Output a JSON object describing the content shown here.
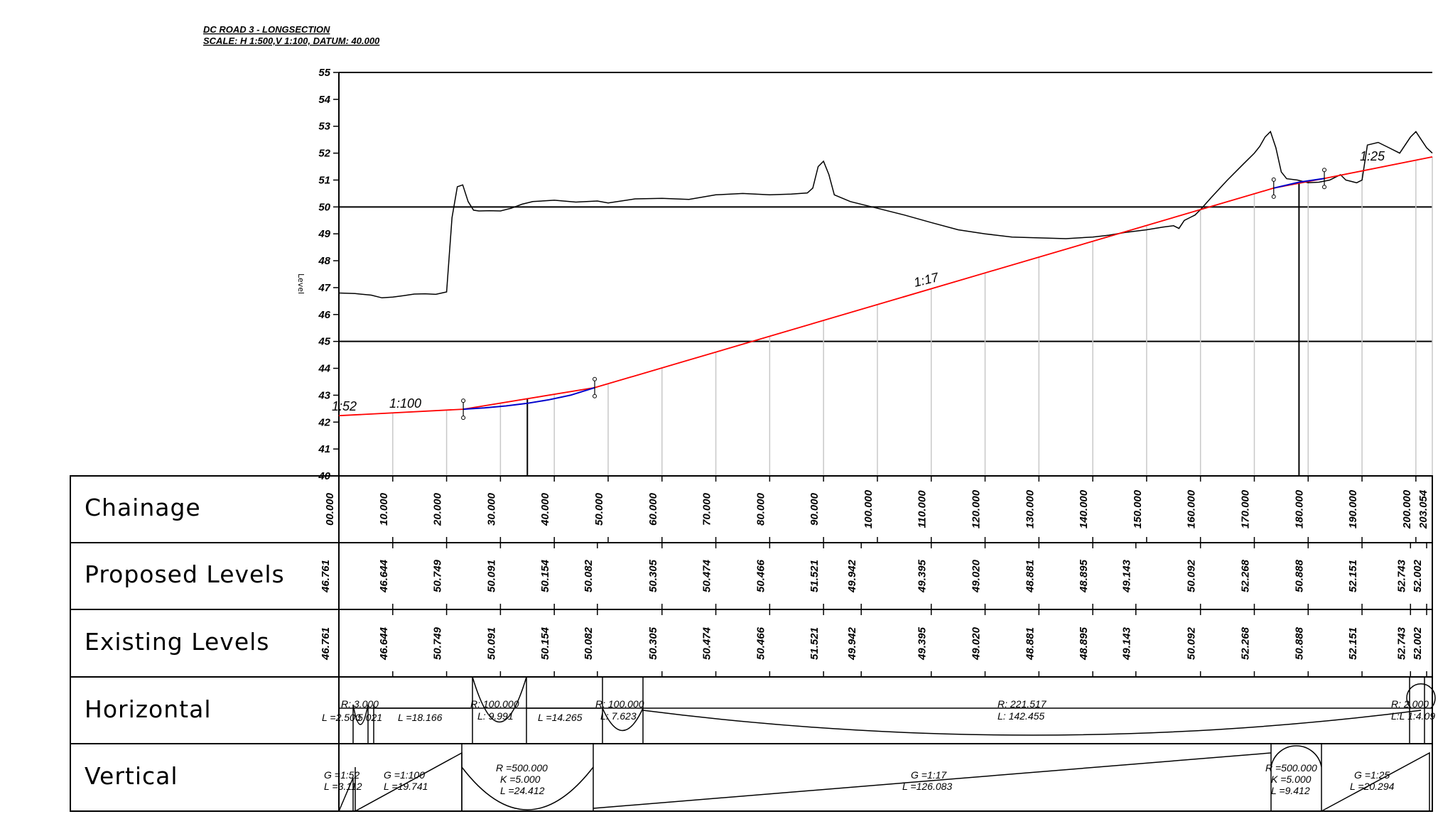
{
  "title": {
    "line1": "DC ROAD 3 - LONGSECTION",
    "line2": "SCALE: H 1:500,V 1:100, DATUM: 40.000"
  },
  "axis": {
    "y_label": "Level",
    "y_ticks": [
      40,
      41,
      42,
      43,
      44,
      45,
      46,
      47,
      48,
      49,
      50,
      51,
      52,
      53,
      54,
      55
    ],
    "x_range": [
      0,
      203.054
    ]
  },
  "grades": {
    "g1": "1:52",
    "g2": "1:100",
    "g3": "1:17",
    "g4": "1:25"
  },
  "table": {
    "headers": {
      "chainage": "Chainage",
      "proposed": "Proposed Levels",
      "existing": "Existing Levels",
      "horizontal": "Horizontal",
      "vertical": "Vertical"
    },
    "chainage_labels": [
      {
        "ch": 0,
        "text": "00.000"
      },
      {
        "ch": 10,
        "text": "10.000"
      },
      {
        "ch": 20,
        "text": "20.000"
      },
      {
        "ch": 30,
        "text": "30.000"
      },
      {
        "ch": 40,
        "text": "40.000"
      },
      {
        "ch": 50,
        "text": "50.000"
      },
      {
        "ch": 60,
        "text": "60.000"
      },
      {
        "ch": 70,
        "text": "70.000"
      },
      {
        "ch": 80,
        "text": "80.000"
      },
      {
        "ch": 90,
        "text": "90.000"
      },
      {
        "ch": 100,
        "text": "100.000"
      },
      {
        "ch": 110,
        "text": "110.000"
      },
      {
        "ch": 120,
        "text": "120.000"
      },
      {
        "ch": 130,
        "text": "130.000"
      },
      {
        "ch": 140,
        "text": "140.000"
      },
      {
        "ch": 150,
        "text": "150.000"
      },
      {
        "ch": 160,
        "text": "160.000"
      },
      {
        "ch": 170,
        "text": "170.000"
      },
      {
        "ch": 180,
        "text": "180.000"
      },
      {
        "ch": 190,
        "text": "190.000"
      },
      {
        "ch": 200,
        "text": "200.000"
      },
      {
        "ch": 203.054,
        "text": "203.054"
      }
    ],
    "proposed_levels": [
      {
        "ch": -4,
        "text": "46.761"
      },
      {
        "ch": 10,
        "text": "46.644"
      },
      {
        "ch": 20,
        "text": "50.749"
      },
      {
        "ch": 30,
        "text": "50.091"
      },
      {
        "ch": 40,
        "text": "50.154"
      },
      {
        "ch": 48,
        "text": "50.082"
      },
      {
        "ch": 60,
        "text": "50.305"
      },
      {
        "ch": 70,
        "text": "50.474"
      },
      {
        "ch": 80,
        "text": "50.466"
      },
      {
        "ch": 90,
        "text": "51.521"
      },
      {
        "ch": 97,
        "text": "49.942"
      },
      {
        "ch": 110,
        "text": "49.395"
      },
      {
        "ch": 120,
        "text": "49.020"
      },
      {
        "ch": 130,
        "text": "48.881"
      },
      {
        "ch": 140,
        "text": "48.895"
      },
      {
        "ch": 148,
        "text": "49.143"
      },
      {
        "ch": 160,
        "text": "50.092"
      },
      {
        "ch": 170,
        "text": "52.268"
      },
      {
        "ch": 180,
        "text": "50.888"
      },
      {
        "ch": 190,
        "text": "52.151"
      },
      {
        "ch": 199,
        "text": "52.743"
      },
      {
        "ch": 202,
        "text": "52.002"
      }
    ],
    "existing_levels": [
      {
        "ch": -4,
        "text": "46.761"
      },
      {
        "ch": 10,
        "text": "46.644"
      },
      {
        "ch": 20,
        "text": "50.749"
      },
      {
        "ch": 30,
        "text": "50.091"
      },
      {
        "ch": 40,
        "text": "50.154"
      },
      {
        "ch": 48,
        "text": "50.082"
      },
      {
        "ch": 60,
        "text": "50.305"
      },
      {
        "ch": 70,
        "text": "50.474"
      },
      {
        "ch": 80,
        "text": "50.466"
      },
      {
        "ch": 90,
        "text": "51.521"
      },
      {
        "ch": 97,
        "text": "49.942"
      },
      {
        "ch": 110,
        "text": "49.395"
      },
      {
        "ch": 120,
        "text": "49.020"
      },
      {
        "ch": 130,
        "text": "48.881"
      },
      {
        "ch": 140,
        "text": "48.895"
      },
      {
        "ch": 148,
        "text": "49.143"
      },
      {
        "ch": 160,
        "text": "50.092"
      },
      {
        "ch": 170,
        "text": "52.268"
      },
      {
        "ch": 180,
        "text": "50.888"
      },
      {
        "ch": 190,
        "text": "52.151"
      },
      {
        "ch": 199,
        "text": "52.743"
      },
      {
        "ch": 202,
        "text": "52.002"
      }
    ],
    "horizontal": {
      "r1": "R: 3.000",
      "l1": "L =2.500",
      "l1b": "5.021",
      "l2": "L =18.166",
      "r2": "R: 100.000",
      "l3": "L: 9.991",
      "l4": "L =14.265",
      "r3": "R: 100.000",
      "l5": "L: 7.623",
      "r4": "R: 221.517",
      "l6": "L: 142.455",
      "r5": "R: 2.000",
      "l7": "L:L 1:4.09"
    },
    "vertical": {
      "g1": "G =1:52",
      "l1": "L =3.112",
      "g2": "G =1:100",
      "l2": "L =19.741",
      "r1": "R =500.000",
      "k1": "K =5.000",
      "l3": "L =24.412",
      "g3": "G =1:17",
      "l4": "L =126.083",
      "r2": "R =500.000",
      "k2": "K =5.000",
      "l5": "L =9.412",
      "g4": "G =1:25",
      "l6": "L =20.294"
    }
  },
  "chart_data": {
    "type": "line",
    "title": "DC ROAD 3 - LONGSECTION",
    "ylabel": "Level",
    "xlabel": "Chainage",
    "ylim": [
      40,
      55
    ],
    "xlim": [
      0,
      203.054
    ],
    "series": [
      {
        "id": "existing",
        "color": "#000000",
        "x": [
          0,
          3,
          6,
          8,
          10,
          12,
          14,
          16,
          18,
          20,
          21,
          22,
          23,
          24,
          25,
          26,
          28,
          30,
          32,
          34,
          36,
          40,
          44,
          48,
          50,
          55,
          60,
          65,
          70,
          75,
          80,
          84,
          87,
          88,
          89,
          90,
          91,
          92,
          95,
          100,
          105,
          110,
          115,
          120,
          125,
          130,
          135,
          140,
          143,
          146,
          150,
          153,
          155,
          156,
          157,
          158,
          159,
          160,
          162,
          165,
          168,
          170,
          171,
          172,
          173,
          174,
          175,
          176,
          178,
          180,
          182,
          184,
          185,
          186,
          187,
          188,
          189,
          190,
          191,
          193,
          195,
          197,
          199,
          200,
          201,
          202,
          203.054
        ],
        "y": [
          46.8,
          46.78,
          46.72,
          46.62,
          46.65,
          46.7,
          46.76,
          46.77,
          46.75,
          46.84,
          49.6,
          50.75,
          50.82,
          50.2,
          49.88,
          49.85,
          49.86,
          49.85,
          49.95,
          50.1,
          50.2,
          50.25,
          50.18,
          50.22,
          50.15,
          50.3,
          50.32,
          50.28,
          50.45,
          50.5,
          50.45,
          50.48,
          50.52,
          50.7,
          51.5,
          51.7,
          51.2,
          50.45,
          50.2,
          49.95,
          49.7,
          49.42,
          49.15,
          49.0,
          48.88,
          48.85,
          48.82,
          48.88,
          48.95,
          49.05,
          49.15,
          49.25,
          49.3,
          49.2,
          49.5,
          49.6,
          49.7,
          49.9,
          50.35,
          51.0,
          51.6,
          52.0,
          52.25,
          52.6,
          52.8,
          52.2,
          51.3,
          51.05,
          51.0,
          50.9,
          50.92,
          51.0,
          51.1,
          51.2,
          51.0,
          50.95,
          50.9,
          51.0,
          52.3,
          52.4,
          52.2,
          52.0,
          52.6,
          52.8,
          52.5,
          52.2,
          52.0
        ]
      },
      {
        "id": "proposed",
        "color": "#ff0000",
        "x": [
          0,
          23.1,
          47.5,
          173.6,
          183.0,
          203.054
        ],
        "y": [
          42.24,
          42.48,
          43.28,
          50.7,
          51.06,
          51.86
        ]
      },
      {
        "id": "vertical-curves",
        "color": "#0000cc",
        "x": [
          23.1,
          27,
          31,
          35,
          39,
          43,
          47.5,
          173.6,
          178.3,
          183.0
        ],
        "y": [
          42.48,
          42.53,
          42.6,
          42.7,
          42.83,
          43.0,
          43.28,
          50.7,
          50.92,
          51.06
        ]
      }
    ]
  }
}
